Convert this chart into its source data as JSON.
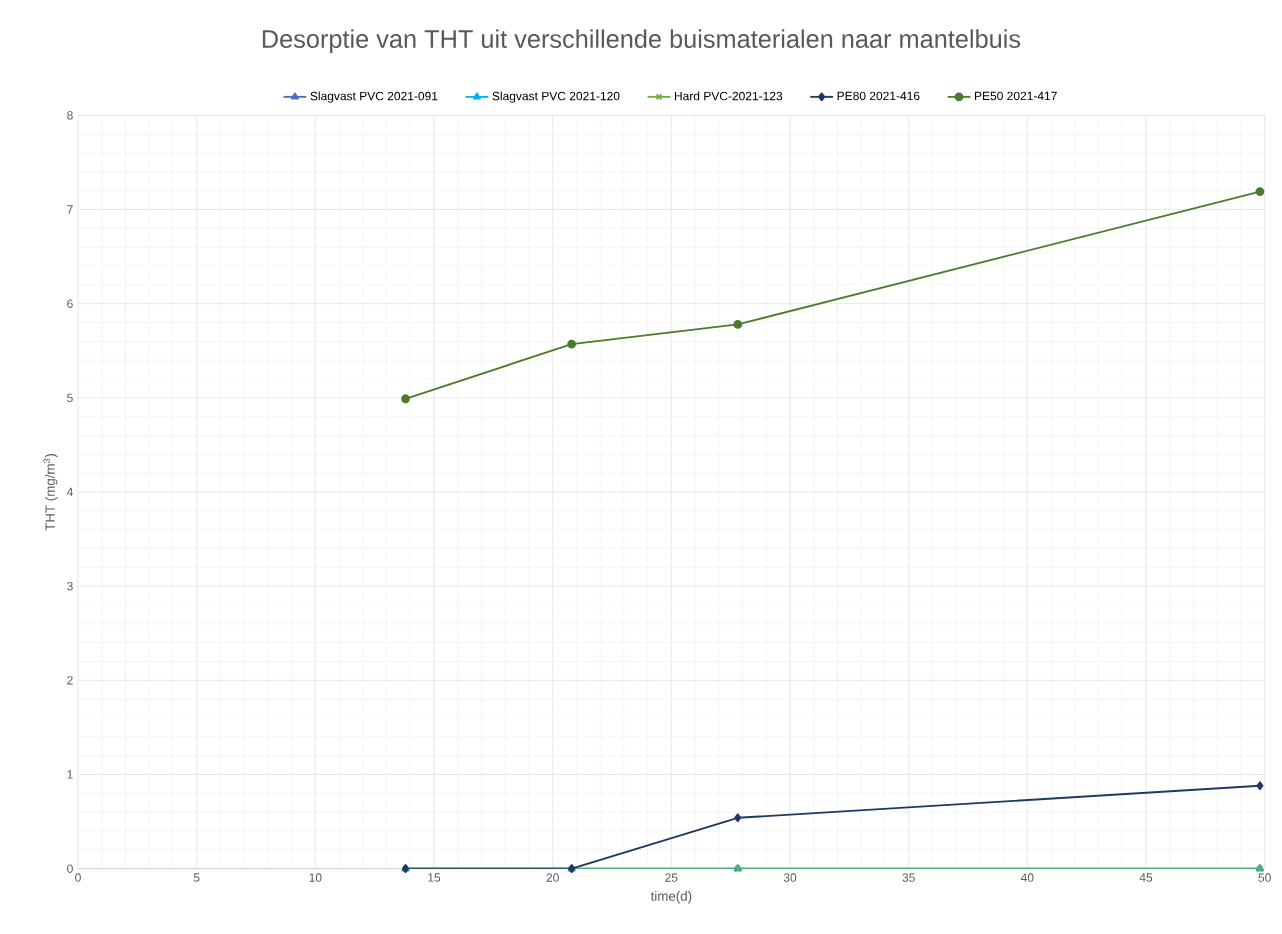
{
  "chart_data": {
    "type": "line",
    "title": "Desorptie van THT uit verschillende buismaterialen naar mantelbuis",
    "xlabel": "time(d)",
    "ylabel": "THT (mg/m$^{3}$)",
    "x": [
      13.8,
      20.8,
      27.8,
      49.8
    ],
    "series": [
      {
        "name": "Slagvast PVC 2021-091",
        "color": "#4472c4",
        "marker": "triangle",
        "values": [
          0,
          0,
          0,
          0
        ]
      },
      {
        "name": "Slagvast PVC 2021-120",
        "color": "#00b0f0",
        "marker": "triangle",
        "values": [
          0,
          0,
          0,
          0
        ]
      },
      {
        "name": "Hard PVC-2021-123",
        "color": "#70ad47",
        "marker": "cross",
        "values": [
          0,
          0,
          0,
          0
        ]
      },
      {
        "name": "PE80 2021-416",
        "color": "#203864",
        "marker": "diamond",
        "values": [
          0,
          0,
          0.54,
          0.88
        ]
      },
      {
        "name": "PE50 2021-417",
        "color": "#4e7a2c",
        "marker": "circle",
        "values": [
          4.99,
          5.57,
          5.78,
          7.19
        ]
      }
    ],
    "xlim": [
      0,
      50
    ],
    "xticks": [
      0,
      5,
      10,
      15,
      20,
      25,
      30,
      35,
      40,
      45,
      50
    ],
    "ylim": [
      0,
      8
    ],
    "yticks": [
      0,
      1,
      2,
      3,
      4,
      5,
      6,
      7,
      8
    ],
    "grid": true,
    "legend": "top",
    "line_style": "solid"
  }
}
